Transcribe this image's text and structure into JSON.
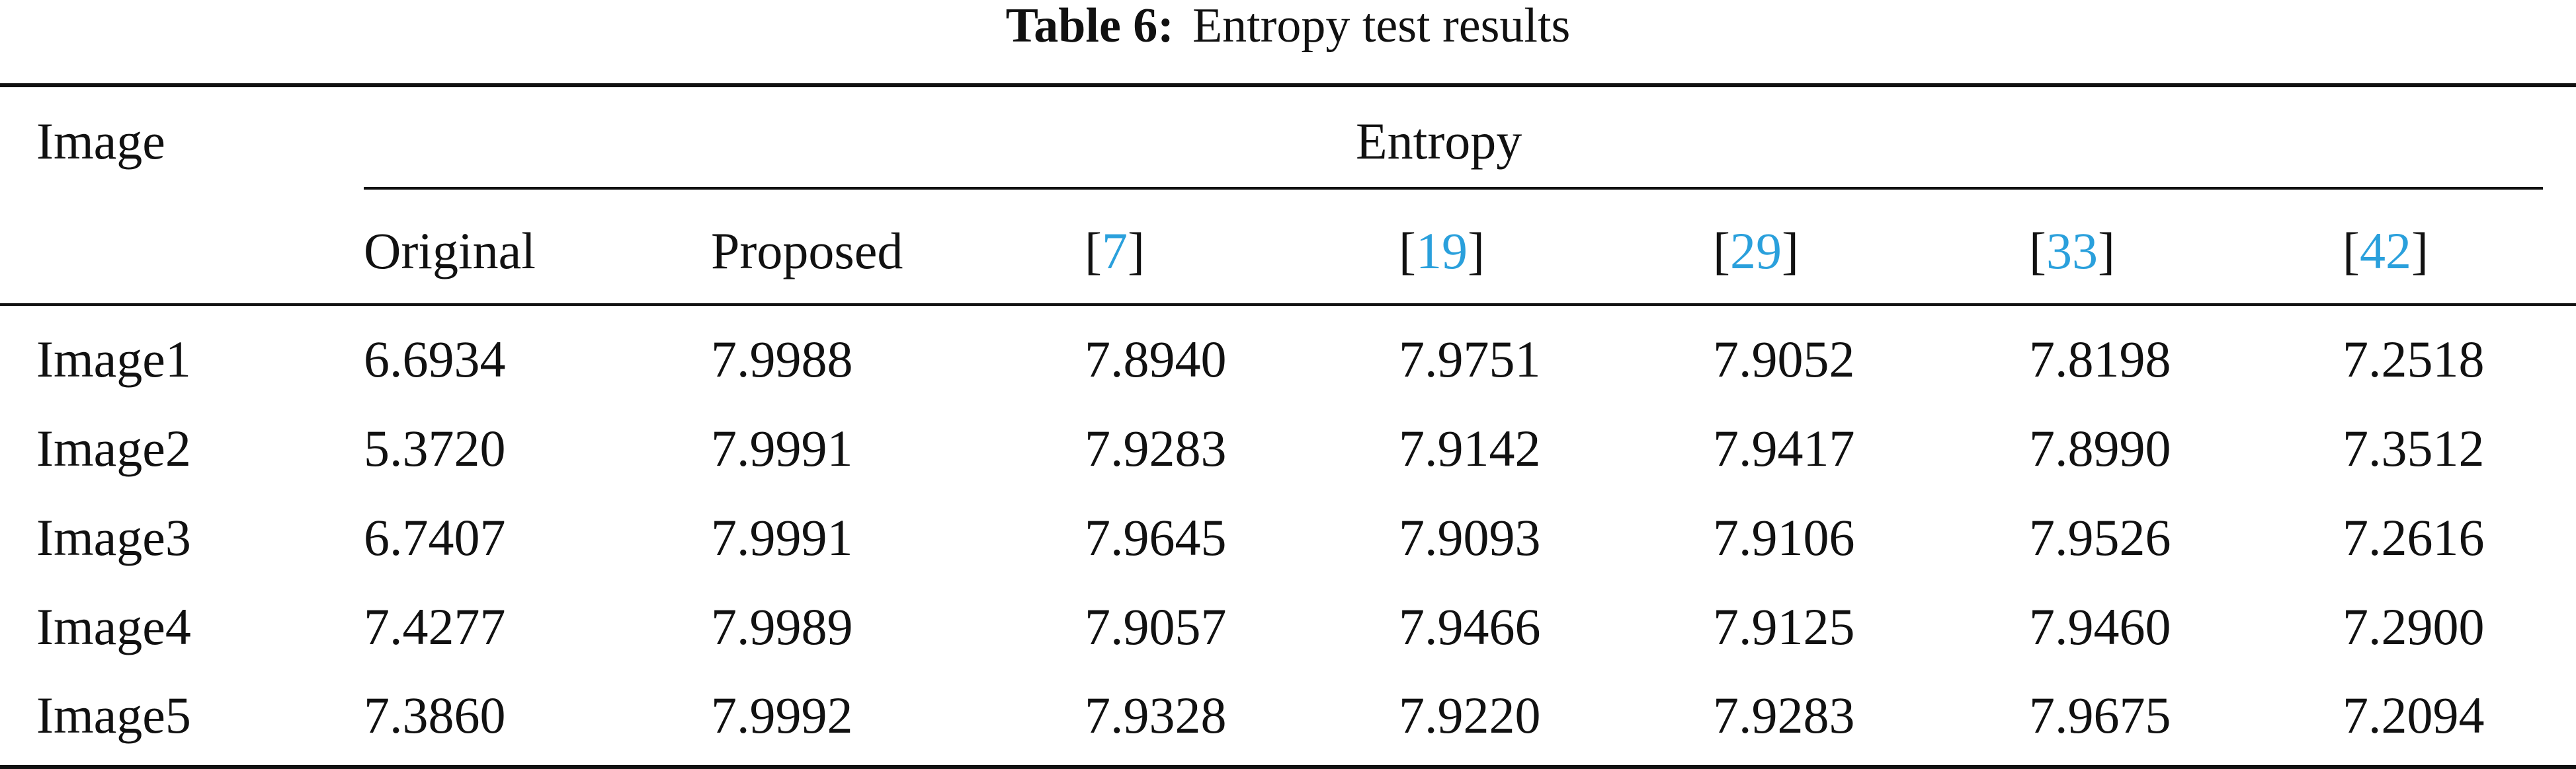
{
  "caption": {
    "label": "Table 6:",
    "text": "Entropy test results"
  },
  "header": {
    "image": "Image",
    "group": "Entropy",
    "subheaders": [
      {
        "text": "Original",
        "is_citation": false
      },
      {
        "text": "Proposed",
        "is_citation": false
      },
      {
        "text": "7",
        "is_citation": true
      },
      {
        "text": "19",
        "is_citation": true
      },
      {
        "text": "29",
        "is_citation": true
      },
      {
        "text": "33",
        "is_citation": true
      },
      {
        "text": "42",
        "is_citation": true
      }
    ]
  },
  "rows": [
    {
      "image": "Image1",
      "values": [
        "6.6934",
        "7.9988",
        "7.8940",
        "7.9751",
        "7.9052",
        "7.8198",
        "7.2518"
      ]
    },
    {
      "image": "Image2",
      "values": [
        "5.3720",
        "7.9991",
        "7.9283",
        "7.9142",
        "7.9417",
        "7.8990",
        "7.3512"
      ]
    },
    {
      "image": "Image3",
      "values": [
        "6.7407",
        "7.9991",
        "7.9645",
        "7.9093",
        "7.9106",
        "7.9526",
        "7.2616"
      ]
    },
    {
      "image": "Image4",
      "values": [
        "7.4277",
        "7.9989",
        "7.9057",
        "7.9466",
        "7.9125",
        "7.9460",
        "7.2900"
      ]
    },
    {
      "image": "Image5",
      "values": [
        "7.3860",
        "7.9992",
        "7.9328",
        "7.9220",
        "7.9283",
        "7.9675",
        "7.2094"
      ]
    }
  ],
  "colors": {
    "text": "#111111",
    "citation": "#2aa0dc"
  }
}
